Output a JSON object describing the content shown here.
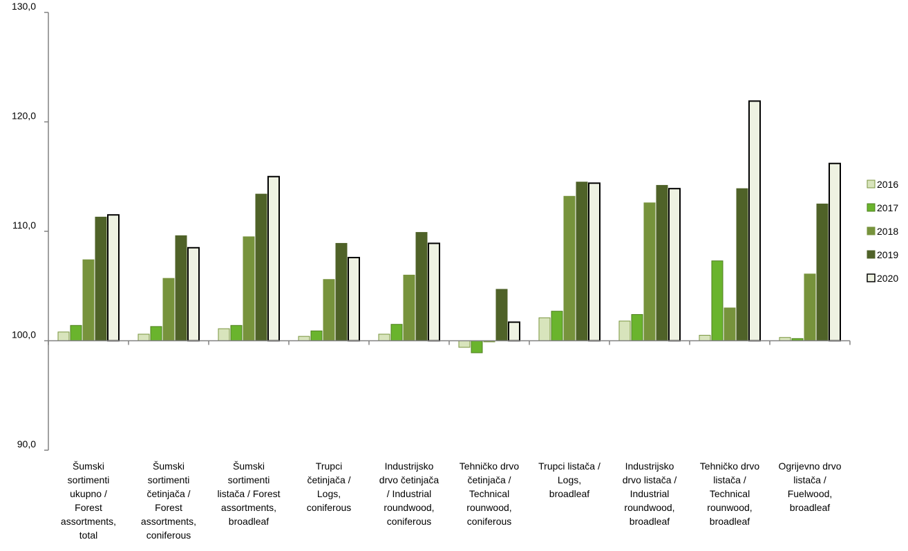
{
  "chart_data": {
    "type": "bar",
    "baseline": 100,
    "ylim": [
      90,
      130
    ],
    "yticks": [
      "130,0",
      "120,0",
      "110,0",
      "100,0",
      "90,0"
    ],
    "categories": [
      [
        "Šumski",
        "sortimenti",
        "ukupno /",
        "Forest",
        "assortments,",
        "total"
      ],
      [
        "Šumski",
        "sortimenti",
        "četinjača /",
        "Forest",
        "assortments,",
        "coniferous"
      ],
      [
        "Šumski",
        "sortimenti",
        "listača / Forest",
        "assortments,",
        "broadleaf"
      ],
      [
        "Trupci",
        "četinjača /",
        "Logs,",
        "coniferous"
      ],
      [
        "Industrijsko",
        "drvo četinjača",
        "/ Industrial",
        "roundwood,",
        "coniferous"
      ],
      [
        "Tehničko drvo",
        "četinjača /",
        "Technical",
        "rounwood,",
        "coniferous"
      ],
      [
        "Trupci listača /",
        "Logs,",
        "broadleaf"
      ],
      [
        "Industrijsko",
        "drvo listača /",
        "Industrial",
        "roundwood,",
        "broadleaf"
      ],
      [
        "Tehničko drvo",
        "listača /",
        "Technical",
        "rounwood,",
        "broadleaf"
      ],
      [
        "Ogrijevno drvo",
        "listača /",
        "Fuelwood,",
        "broadleaf"
      ]
    ],
    "series": [
      {
        "name": "2016",
        "color": "#d8e4bc",
        "stroke": "#77933c",
        "values": [
          100.8,
          100.6,
          101.1,
          100.4,
          100.6,
          99.4,
          102.1,
          101.8,
          100.5,
          100.3
        ]
      },
      {
        "name": "2017",
        "color": "#6ab42d",
        "stroke": "#4f7f1f",
        "values": [
          101.4,
          101.3,
          101.4,
          100.9,
          101.5,
          98.9,
          102.7,
          102.4,
          107.3,
          100.2
        ]
      },
      {
        "name": "2018",
        "color": "#77933c",
        "stroke": "#77933c",
        "values": [
          107.4,
          105.7,
          109.5,
          105.6,
          106.0,
          99.9,
          113.2,
          112.6,
          103.0,
          106.1
        ]
      },
      {
        "name": "2019",
        "color": "#4f6228",
        "stroke": "#4f6228",
        "values": [
          111.3,
          109.6,
          113.4,
          108.9,
          109.9,
          104.7,
          114.5,
          114.2,
          113.9,
          112.5
        ]
      },
      {
        "name": "2020",
        "color": "#eef2e2",
        "stroke": "#000000",
        "values": [
          111.5,
          108.5,
          115.0,
          107.6,
          108.9,
          101.7,
          114.4,
          113.9,
          121.9,
          116.2
        ]
      }
    ],
    "legend_position": "right",
    "grid": false
  }
}
